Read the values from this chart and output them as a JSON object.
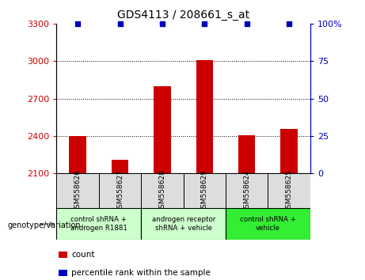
{
  "title": "GDS4113 / 208661_s_at",
  "samples": [
    "GSM558626",
    "GSM558627",
    "GSM558628",
    "GSM558629",
    "GSM558624",
    "GSM558625"
  ],
  "counts": [
    2400,
    2210,
    2800,
    3010,
    2405,
    2460
  ],
  "percentile_ranks": [
    100,
    100,
    100,
    100,
    100,
    100
  ],
  "bar_color": "#cc0000",
  "dot_color": "#0000bb",
  "ylim_left": [
    2100,
    3300
  ],
  "ylim_right": [
    0,
    100
  ],
  "yticks_left": [
    2100,
    2400,
    2700,
    3000,
    3300
  ],
  "yticks_right": [
    0,
    25,
    50,
    75,
    100
  ],
  "group_labels": [
    "control shRNA +\nandrogen R1881",
    "androgen receptor\nshRNA + vehicle",
    "control shRNA +\nvehicle"
  ],
  "group_ranges": [
    [
      0,
      2
    ],
    [
      2,
      4
    ],
    [
      4,
      6
    ]
  ],
  "group_colors": [
    "#ccffcc",
    "#ccffcc",
    "#33ee33"
  ],
  "legend_count_label": "count",
  "legend_percentile_label": "percentile rank within the sample",
  "genotype_label": "genotype/variation",
  "bar_width": 0.4,
  "sample_box_color": "#dddddd",
  "grid_ticks": [
    2400,
    2700,
    3000
  ]
}
